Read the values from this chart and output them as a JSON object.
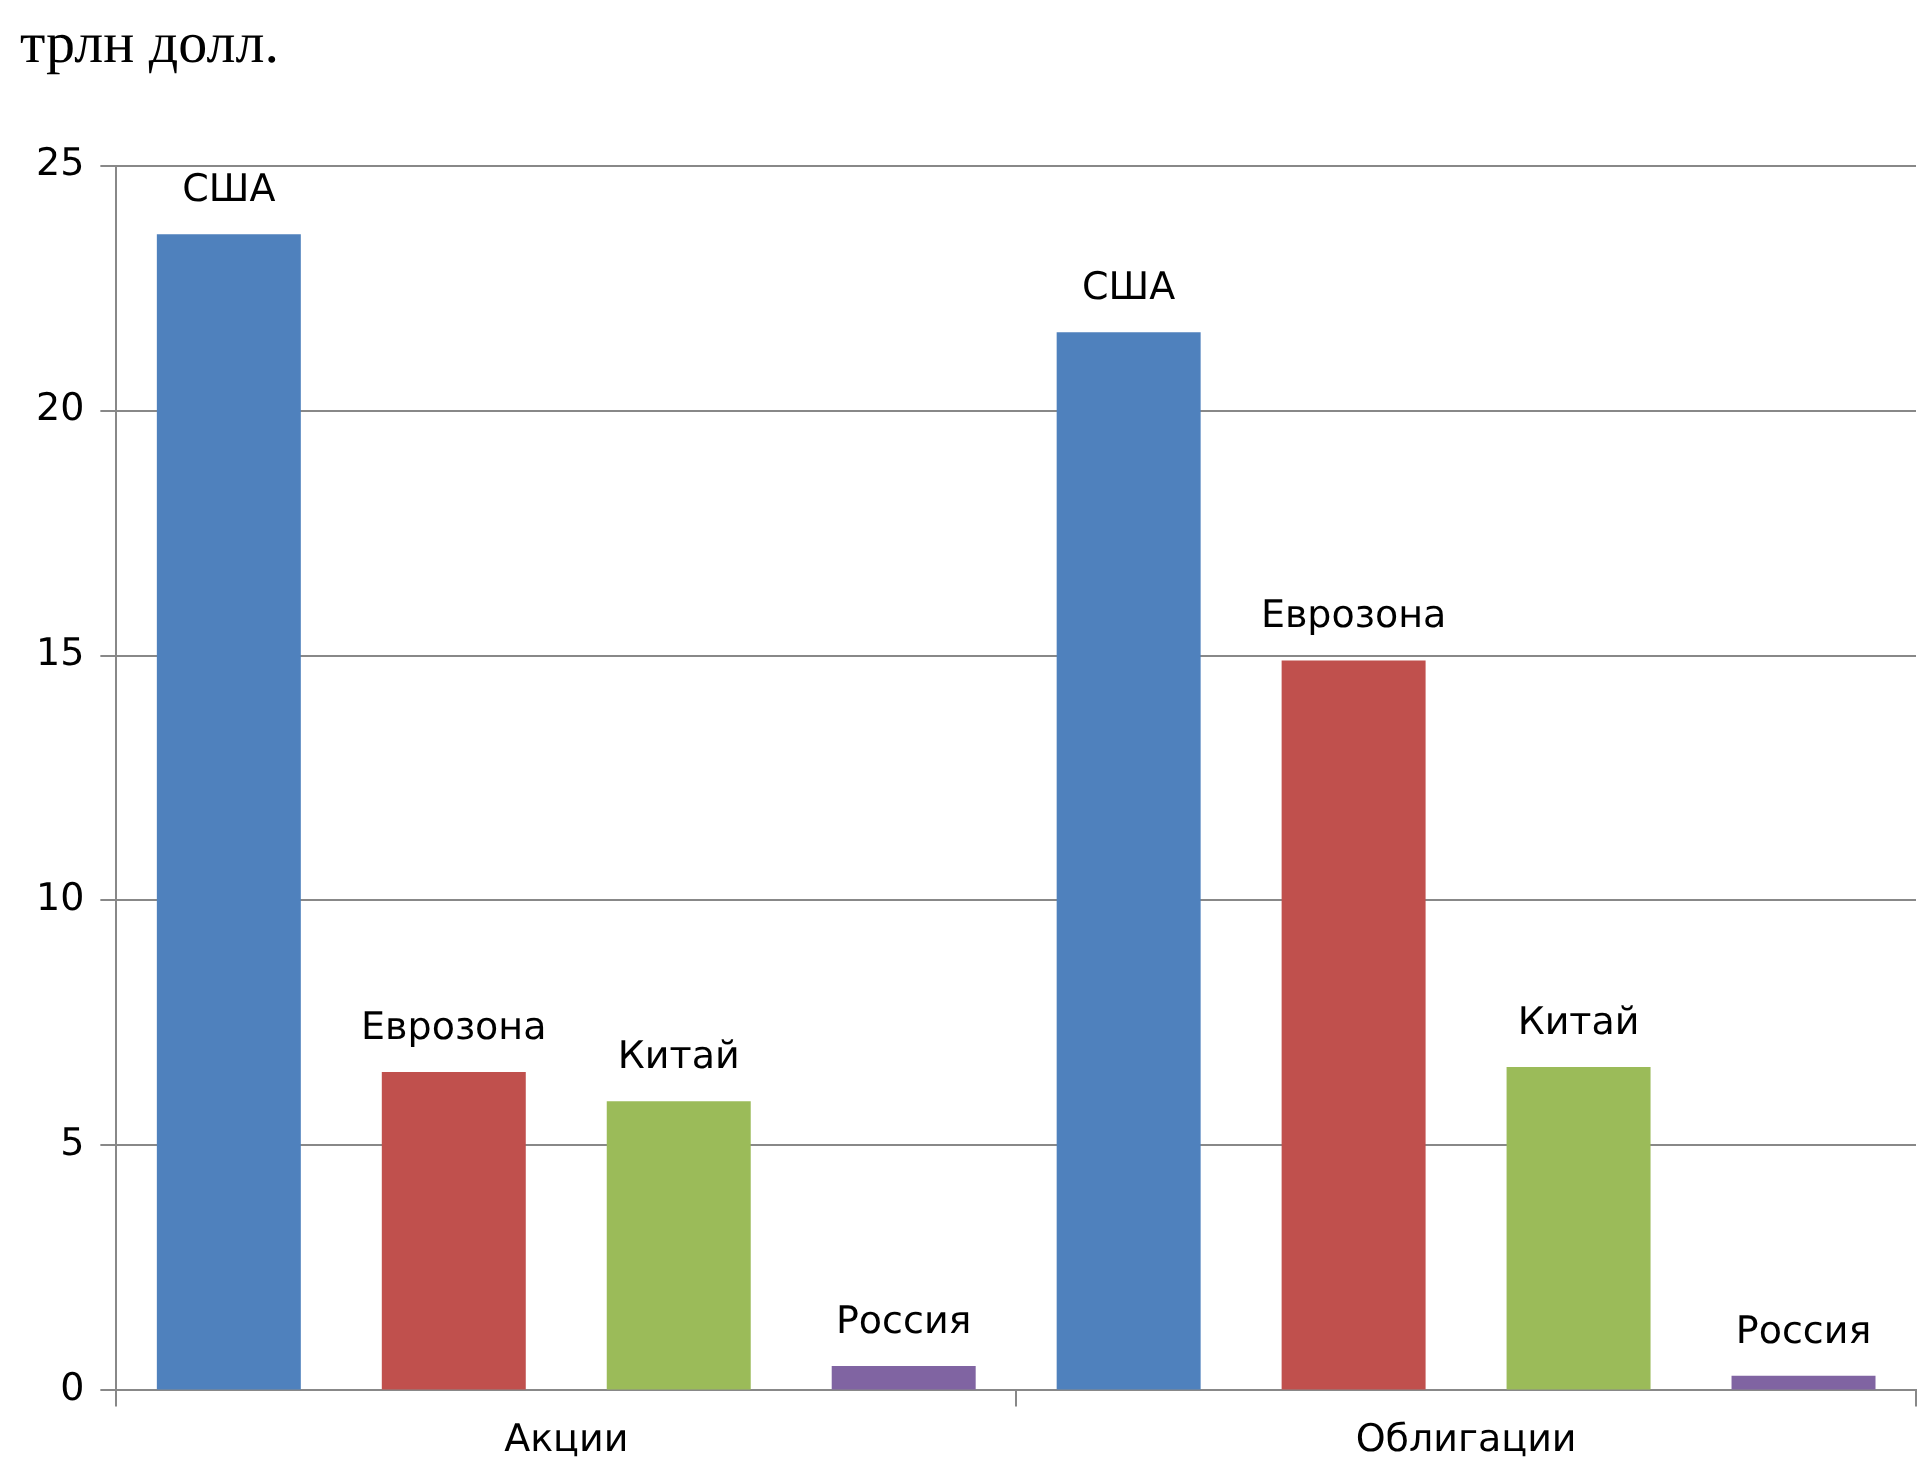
{
  "chart_data": {
    "type": "bar",
    "title": "трлн долл.",
    "categories": [
      "Акции",
      "Облигации"
    ],
    "series": [
      {
        "name": "США",
        "color": "#4f81bd",
        "values": [
          23.6,
          21.6
        ]
      },
      {
        "name": "Еврозона",
        "color": "#c0504d",
        "values": [
          6.5,
          14.9
        ]
      },
      {
        "name": "Китай",
        "color": "#9bbb59",
        "values": [
          5.9,
          6.6
        ]
      },
      {
        "name": "Россия",
        "color": "#8064a2",
        "values": [
          0.5,
          0.3
        ]
      }
    ],
    "ylim": [
      0,
      25
    ],
    "yticks": [
      0,
      5,
      10,
      15,
      20,
      25
    ],
    "grid": "y",
    "legend": false
  }
}
